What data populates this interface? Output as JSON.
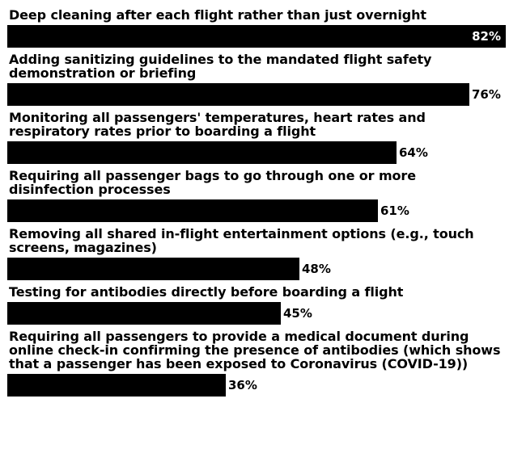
{
  "chart_data": {
    "type": "bar",
    "orientation": "horizontal",
    "categories": [
      "Deep cleaning after each flight rather than just overnight",
      "Adding sanitizing guidelines to the mandated flight safety demonstration or briefing",
      "Monitoring all passengers' temperatures, heart rates and respiratory rates prior to boarding a flight",
      "Requiring all passenger bags to go through one or more disinfection processes",
      "Removing all shared in-flight entertainment options (e.g., touch screens, magazines)",
      "Testing for antibodies directly before boarding a flight",
      "Requiring all passengers to provide a medical document during online check-in confirming the presence of antibodies (which shows that a passenger has been exposed to Coronavirus (COVID-19))"
    ],
    "values": [
      82,
      76,
      64,
      61,
      48,
      45,
      36
    ],
    "value_labels": [
      "82%",
      "76%",
      "64%",
      "61%",
      "48%",
      "45%",
      "36%"
    ],
    "xlim": [
      0,
      82
    ],
    "bar_color": "#000000",
    "grid": false,
    "legend": "none"
  }
}
